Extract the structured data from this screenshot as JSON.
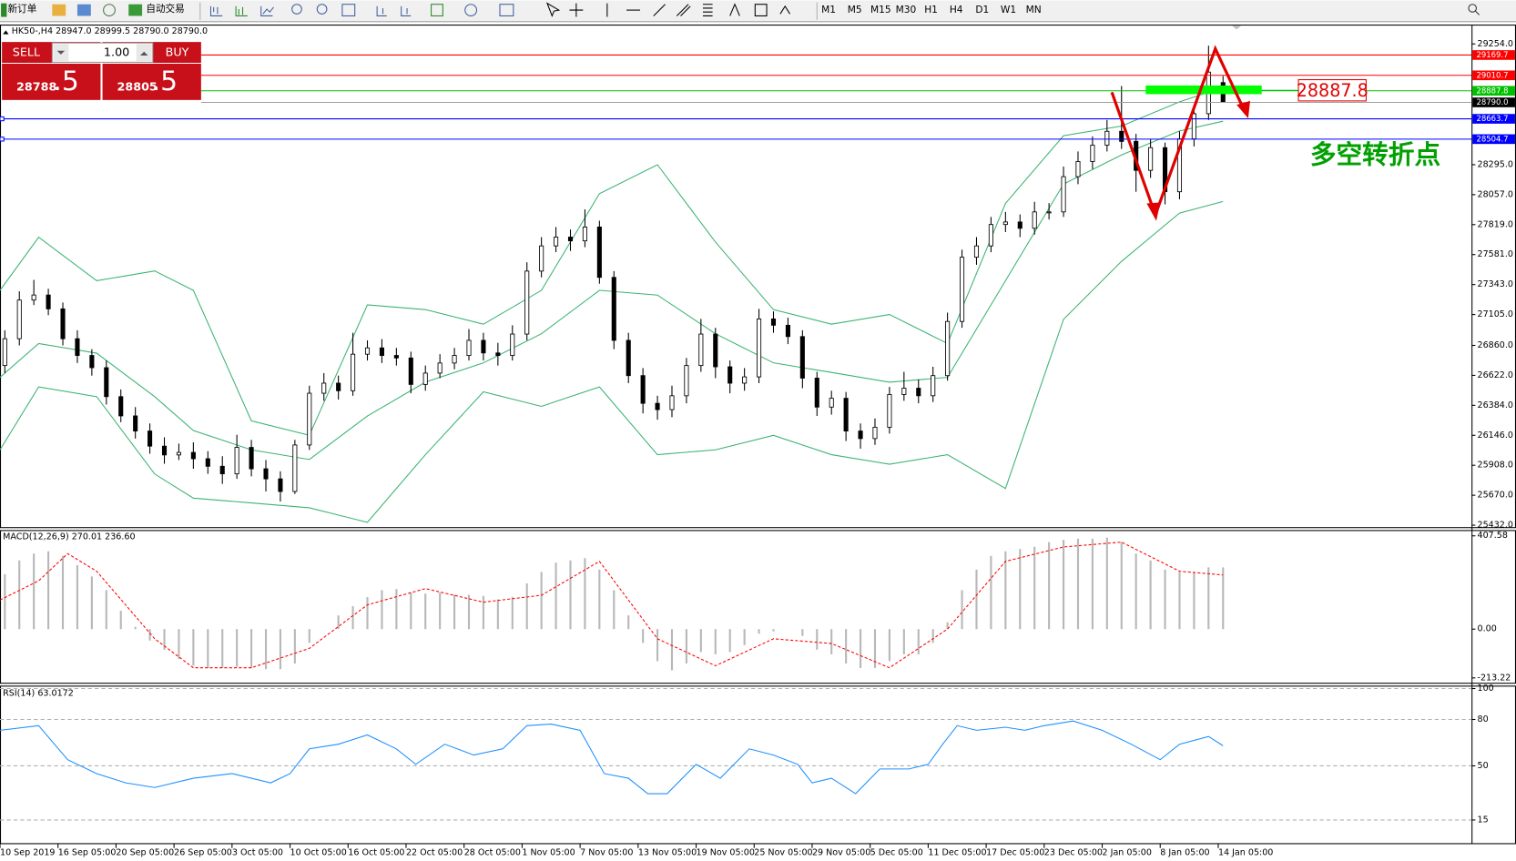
{
  "toolbar": {
    "new_order": "新订单",
    "auto_trade": "自动交易",
    "timeframes": [
      "M1",
      "M5",
      "M15",
      "M30",
      "H1",
      "H4",
      "D1",
      "W1",
      "MN"
    ]
  },
  "order_panel": {
    "sell": "SELL",
    "buy": "BUY",
    "lots": "1.00",
    "sell_price": "28788",
    "sell_pips": ".5",
    "buy_price": "28805",
    "buy_pips": ".5"
  },
  "chart_data": [
    {
      "type": "candlestick",
      "title": "HK50-,H4  28947.0 28999.5 28790.0 28790.0",
      "x": [
        1,
        4,
        7,
        10,
        13,
        16,
        19,
        22,
        25,
        28,
        31,
        34,
        37,
        40,
        43,
        46,
        49,
        52,
        55,
        58,
        61,
        64,
        67,
        70,
        73,
        76,
        79,
        82,
        85,
        88,
        91,
        94,
        97,
        100,
        103,
        106,
        109,
        112,
        115,
        118,
        121,
        124,
        127,
        130,
        133,
        136,
        139,
        142,
        145,
        148,
        151,
        154,
        157,
        160,
        163,
        166,
        169,
        172,
        175,
        178,
        181,
        184,
        187,
        190,
        193,
        196,
        199,
        202,
        205,
        208,
        211,
        214,
        217,
        220,
        223,
        226,
        229,
        232,
        235,
        238,
        241,
        244,
        247,
        250,
        253
      ],
      "open": [
        26700,
        26913,
        27220,
        27260,
        27150,
        26913,
        26780,
        26683,
        26453,
        26300,
        26180,
        26060,
        25990,
        26010,
        25960,
        25900,
        25840,
        26050,
        25880,
        25800,
        25700,
        26069,
        26480,
        26560,
        26500,
        26790,
        26840,
        26780,
        26760,
        26550,
        26640,
        26720,
        26780,
        26900,
        26800,
        26780,
        26950,
        27450,
        27650,
        27720,
        27690,
        27800,
        27400,
        26900,
        26620,
        26400,
        26350,
        26460,
        26700,
        26950,
        26690,
        26560,
        26610,
        27070,
        27020,
        26930,
        26600,
        26370,
        26440,
        26180,
        26120,
        26210,
        26470,
        26520,
        26460,
        26620,
        27050,
        27560,
        27650,
        27820,
        27840,
        27790,
        27920,
        27920,
        28200,
        28320,
        28450,
        28560,
        28480,
        28250,
        28430,
        28080,
        28500,
        28700,
        28947
      ],
      "high": [
        26980,
        27290,
        27380,
        27310,
        27200,
        26980,
        26830,
        26740,
        26510,
        26370,
        26240,
        26130,
        26080,
        26090,
        26020,
        25980,
        26150,
        26110,
        25950,
        25860,
        26110,
        26540,
        26640,
        26620,
        26960,
        26900,
        26910,
        26840,
        26810,
        26700,
        26790,
        26840,
        26990,
        26960,
        26880,
        27020,
        27520,
        27720,
        27800,
        27780,
        27940,
        27850,
        27450,
        26960,
        26680,
        26460,
        26540,
        26760,
        27070,
        27000,
        26740,
        26680,
        27150,
        27130,
        27080,
        26980,
        26650,
        26500,
        26490,
        26240,
        26280,
        26530,
        26650,
        26590,
        26690,
        27120,
        27620,
        27720,
        27880,
        27920,
        27900,
        28000,
        27990,
        28280,
        28400,
        28520,
        28650,
        28920,
        28540,
        28500,
        28470,
        28560,
        28760,
        29240,
        28999.5
      ],
      "low": [
        26640,
        26860,
        27180,
        27100,
        26860,
        26720,
        26620,
        26390,
        26250,
        26120,
        26000,
        25920,
        25950,
        25880,
        25840,
        25760,
        25800,
        25820,
        25700,
        25620,
        25680,
        26030,
        26420,
        26430,
        26460,
        26740,
        26720,
        26700,
        26480,
        26500,
        26600,
        26670,
        26740,
        26740,
        26700,
        26740,
        26900,
        27400,
        27600,
        27610,
        27640,
        27350,
        26830,
        26560,
        26320,
        26270,
        26290,
        26400,
        26650,
        26600,
        26480,
        26500,
        26560,
        26960,
        26870,
        26520,
        26300,
        26310,
        26100,
        26040,
        26070,
        26160,
        26420,
        26400,
        26410,
        26580,
        27000,
        27500,
        27600,
        27760,
        27720,
        27740,
        27860,
        27880,
        28140,
        28260,
        28400,
        28420,
        28080,
        28190,
        27980,
        28020,
        28440,
        28650,
        28790
      ],
      "close": [
        26913,
        27220,
        27260,
        27150,
        26913,
        26780,
        26683,
        26453,
        26300,
        26180,
        26060,
        25990,
        26010,
        25960,
        25900,
        25840,
        26050,
        25880,
        25800,
        25700,
        26069,
        26480,
        26560,
        26500,
        26790,
        26840,
        26780,
        26760,
        26550,
        26640,
        26720,
        26780,
        26900,
        26800,
        26780,
        26950,
        27450,
        27650,
        27720,
        27690,
        27800,
        27400,
        26900,
        26620,
        26400,
        26350,
        26460,
        26700,
        26950,
        26690,
        26560,
        26610,
        27070,
        27020,
        26930,
        26600,
        26370,
        26440,
        26180,
        26120,
        26210,
        26470,
        26520,
        26460,
        26620,
        27050,
        27560,
        27650,
        27820,
        27840,
        27790,
        27920,
        27920,
        28200,
        28320,
        28450,
        28560,
        28480,
        28250,
        28430,
        28080,
        28500,
        28700,
        29030,
        28790
      ],
      "bull_color": "#ffffff",
      "bear_color": "#000000",
      "bands": {
        "color": "#3cb371",
        "x": [
          0,
          8,
          20,
          32,
          40,
          52,
          64,
          76,
          88,
          100,
          112,
          124,
          136,
          148,
          160,
          172,
          184,
          196,
          208,
          220,
          232,
          244,
          253
        ],
        "upper": [
          27297,
          27719,
          27374,
          27451,
          27297,
          26261,
          26146,
          27182,
          27144,
          27028,
          27297,
          28065,
          28295,
          27681,
          27144,
          27028,
          27105,
          26875,
          27988,
          28525,
          28602,
          28794,
          28909
        ],
        "middle": [
          26606,
          26875,
          26798,
          26453,
          26184,
          26031,
          25954,
          26299,
          26568,
          26721,
          26952,
          27297,
          27259,
          26952,
          26721,
          26645,
          26568,
          26606,
          27374,
          28141,
          28372,
          28563,
          28640
        ],
        "lower": [
          26031,
          26530,
          26453,
          25839,
          25647,
          25609,
          25570,
          25455,
          25992,
          26491,
          26376,
          26530,
          25992,
          26031,
          26146,
          25992,
          25916,
          25992,
          25724,
          27067,
          27527,
          27911,
          28003
        ]
      },
      "levels": [
        {
          "value": 29169.7,
          "color": "#ff0000"
        },
        {
          "value": 29010.7,
          "color": "#ff0000"
        },
        {
          "value": 28887.8,
          "color": "#00c000"
        },
        {
          "value": 28790,
          "label": "28790.0",
          "color": "#000000"
        },
        {
          "value": 28663.7,
          "color": "#0000ff"
        },
        {
          "value": 28504.7,
          "color": "#0000ff"
        }
      ],
      "annotation": "多空转折点",
      "ylim": [
        25432,
        29254
      ],
      "yticks": [
        {
          "value": 29254,
          "label": "29254.0"
        },
        {
          "value": 28295,
          "label": "28295.0"
        },
        {
          "value": 28057,
          "label": "28057.0"
        },
        {
          "value": 27819,
          "label": "27819.0"
        },
        {
          "value": 27581,
          "label": "27581.0"
        },
        {
          "value": 27343,
          "label": "27343.0"
        },
        {
          "value": 27105,
          "label": "27105.0"
        },
        {
          "value": 26860,
          "label": "26860.0"
        },
        {
          "value": 26622,
          "label": "26622.0"
        },
        {
          "value": 26384,
          "label": "26384.0"
        },
        {
          "value": 26146,
          "label": "26146.0"
        },
        {
          "value": 25908,
          "label": "25908.0"
        },
        {
          "value": 25670,
          "label": "25670.0"
        },
        {
          "value": 25432,
          "label": "25432.0"
        }
      ],
      "xlim": [
        0,
        304.4
      ],
      "xticks": [
        {
          "value": 0,
          "label": "10 Sep 2019"
        },
        {
          "value": 12,
          "label": "16 Sep 05:00"
        },
        {
          "value": 24,
          "label": "20 Sep 05:00"
        },
        {
          "value": 36,
          "label": "26 Sep 05:00"
        },
        {
          "value": 48,
          "label": "3 Oct 05:00"
        },
        {
          "value": 60,
          "label": "10 Oct 05:00"
        },
        {
          "value": 72,
          "label": "16 Oct 05:00"
        },
        {
          "value": 84,
          "label": "22 Oct 05:00"
        },
        {
          "value": 96,
          "label": "28 Oct 05:00"
        },
        {
          "value": 108,
          "label": "1 Nov 05:00"
        },
        {
          "value": 120,
          "label": "7 Nov 05:00"
        },
        {
          "value": 132,
          "label": "13 Nov 05:00"
        },
        {
          "value": 144,
          "label": "19 Nov 05:00"
        },
        {
          "value": 156,
          "label": "25 Nov 05:00"
        },
        {
          "value": 168,
          "label": "29 Nov 05:00"
        },
        {
          "value": 180,
          "label": "5 Dec 05:00"
        },
        {
          "value": 192,
          "label": "11 Dec 05:00"
        },
        {
          "value": 204,
          "label": "17 Dec 05:00"
        },
        {
          "value": 216,
          "label": "23 Dec 05:00"
        },
        {
          "value": 228,
          "label": "2 Jan 05:00"
        },
        {
          "value": 240,
          "label": "8 Jan 05:00"
        },
        {
          "value": 252,
          "label": "14 Jan 05:00"
        }
      ]
    },
    {
      "type": "macd",
      "title": "MACD(12,26,9) 270.01 236.60",
      "color": "#b8b8b8",
      "x": [
        1,
        4,
        7,
        10,
        13,
        16,
        19,
        22,
        25,
        28,
        31,
        34,
        37,
        40,
        43,
        46,
        49,
        52,
        55,
        58,
        61,
        64,
        67,
        70,
        73,
        76,
        79,
        82,
        85,
        88,
        91,
        94,
        97,
        100,
        103,
        106,
        109,
        112,
        115,
        118,
        121,
        124,
        127,
        130,
        133,
        136,
        139,
        142,
        145,
        148,
        151,
        154,
        157,
        160,
        163,
        166,
        169,
        172,
        175,
        178,
        181,
        184,
        187,
        190,
        193,
        196,
        199,
        202,
        205,
        208,
        211,
        214,
        217,
        220,
        223,
        226,
        229,
        232,
        235,
        238,
        241,
        244,
        247,
        250,
        253
      ],
      "values": [
        240,
        300,
        330,
        340,
        320,
        280,
        230,
        170,
        80,
        10,
        -50,
        -90,
        -130,
        -160,
        -170,
        -170,
        -165,
        -170,
        -175,
        -175,
        -150,
        -60,
        0,
        60,
        100,
        140,
        170,
        175,
        160,
        155,
        160,
        150,
        150,
        145,
        130,
        140,
        200,
        250,
        290,
        300,
        310,
        260,
        170,
        60,
        -60,
        -140,
        -180,
        -150,
        -100,
        -110,
        -100,
        -70,
        -20,
        -10,
        0,
        -30,
        -90,
        -110,
        -150,
        -170,
        -170,
        -140,
        -110,
        -110,
        -60,
        30,
        170,
        260,
        320,
        340,
        350,
        360,
        380,
        390,
        395,
        395,
        400,
        380,
        330,
        300,
        260,
        250,
        250,
        270,
        270.01
      ],
      "signal": {
        "color": "#ff0000",
        "x": [
          0,
          8,
          14,
          20,
          32,
          40,
          52,
          64,
          76,
          88,
          100,
          112,
          124,
          136,
          148,
          160,
          172,
          184,
          196,
          208,
          220,
          232,
          244,
          253
        ],
        "values": [
          127,
          211,
          330,
          253,
          -42,
          -169,
          -169,
          -84,
          106,
          177,
          118,
          148,
          296,
          -42,
          -160,
          -42,
          -63,
          -169,
          0,
          296,
          359,
          380,
          253,
          236.6
        ]
      },
      "ylim": [
        -213.22,
        407.58
      ],
      "yticks": [
        407.58,
        {
          "value": 0,
          "label": "0.00"
        },
        -213.22
      ]
    },
    {
      "type": "line",
      "title": "RSI(14) 63.0172",
      "color": "#1e90ff",
      "grid": true,
      "x": [
        0,
        8,
        14,
        20,
        26,
        32,
        40,
        48,
        56,
        60,
        64,
        70,
        76,
        82,
        86,
        92,
        98,
        104,
        109,
        114,
        120,
        125,
        130,
        134,
        138,
        144,
        149,
        155,
        160,
        165,
        168,
        172,
        177,
        182,
        188,
        192,
        195,
        198,
        202,
        208,
        212,
        216,
        222,
        228,
        234,
        240,
        244,
        250,
        253
      ],
      "values": [
        73,
        76,
        54,
        45,
        39,
        36,
        42,
        45,
        39,
        45,
        61,
        64,
        70,
        61,
        51,
        64,
        57,
        61,
        76,
        77,
        73,
        45,
        42,
        32,
        32,
        51,
        42,
        61,
        57,
        51,
        39,
        42,
        32,
        48,
        48,
        51,
        64,
        76,
        73,
        75,
        73,
        76,
        79,
        73,
        64,
        54,
        64,
        69,
        63.0172
      ],
      "ylim": [
        0,
        100
      ],
      "yticks": [
        100,
        80,
        50,
        15
      ]
    }
  ]
}
